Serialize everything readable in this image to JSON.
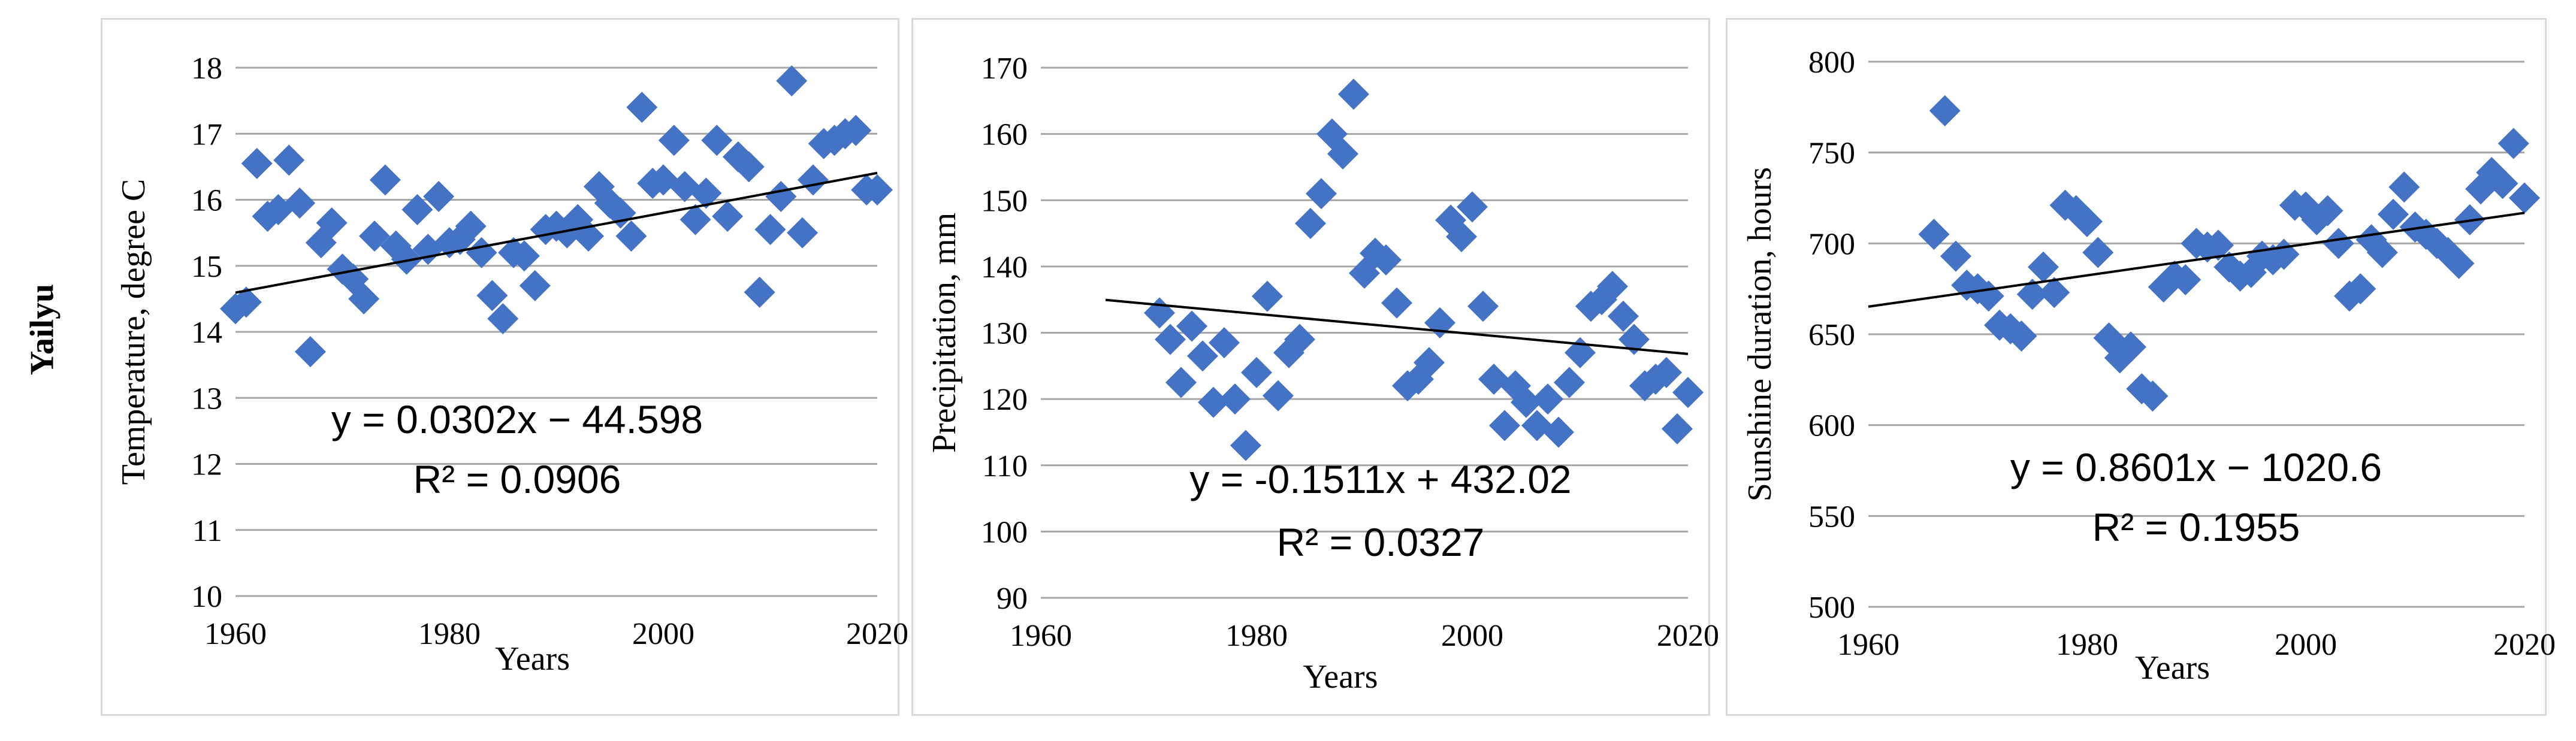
{
  "row_label": "Yailyu",
  "chart_data": [
    {
      "type": "scatter",
      "title": "",
      "xlabel": "Years",
      "ylabel": "Temperature, degree C",
      "xlim": [
        1960,
        2020
      ],
      "ylim": [
        10,
        18
      ],
      "xticks": [
        1960,
        1980,
        2000,
        2020
      ],
      "yticks": [
        10,
        11,
        12,
        13,
        14,
        15,
        16,
        17,
        18
      ],
      "grid": "horizontal",
      "trendline": {
        "slope": 0.0302,
        "intercept": -44.598,
        "x_range": [
          1960,
          2020
        ]
      },
      "equation": "y = 0.0302x − 44.598",
      "r2": "R² = 0.0906",
      "points": [
        [
          1960,
          14.35
        ],
        [
          1961,
          14.45
        ],
        [
          1962,
          16.55
        ],
        [
          1963,
          15.75
        ],
        [
          1964,
          15.85
        ],
        [
          1965,
          16.6
        ],
        [
          1966,
          15.95
        ],
        [
          1967,
          13.7
        ],
        [
          1968,
          15.35
        ],
        [
          1969,
          15.65
        ],
        [
          1970,
          14.95
        ],
        [
          1971,
          14.8
        ],
        [
          1972,
          14.5
        ],
        [
          1973,
          15.45
        ],
        [
          1974,
          16.3
        ],
        [
          1975,
          15.3
        ],
        [
          1976,
          15.1
        ],
        [
          1977,
          15.85
        ],
        [
          1978,
          15.25
        ],
        [
          1979,
          16.05
        ],
        [
          1980,
          15.35
        ],
        [
          1981,
          15.4
        ],
        [
          1982,
          15.6
        ],
        [
          1983,
          15.2
        ],
        [
          1984,
          14.55
        ],
        [
          1985,
          14.2
        ],
        [
          1986,
          15.2
        ],
        [
          1987,
          15.15
        ],
        [
          1988,
          14.7
        ],
        [
          1989,
          15.55
        ],
        [
          1990,
          15.6
        ],
        [
          1991,
          15.5
        ],
        [
          1992,
          15.7
        ],
        [
          1993,
          15.45
        ],
        [
          1994,
          16.2
        ],
        [
          1995,
          15.95
        ],
        [
          1996,
          15.8
        ],
        [
          1997,
          15.45
        ],
        [
          1998,
          17.4
        ],
        [
          1999,
          16.25
        ],
        [
          2000,
          16.3
        ],
        [
          2001,
          16.9
        ],
        [
          2002,
          16.2
        ],
        [
          2003,
          15.7
        ],
        [
          2004,
          16.1
        ],
        [
          2005,
          16.9
        ],
        [
          2006,
          15.75
        ],
        [
          2007,
          16.65
        ],
        [
          2008,
          16.5
        ],
        [
          2009,
          14.6
        ],
        [
          2010,
          15.55
        ],
        [
          2011,
          16.05
        ],
        [
          2012,
          17.8
        ],
        [
          2013,
          15.5
        ],
        [
          2014,
          16.3
        ],
        [
          2015,
          16.85
        ],
        [
          2016,
          16.9
        ],
        [
          2017,
          17.0
        ],
        [
          2018,
          17.05
        ],
        [
          2019,
          16.15
        ],
        [
          2020,
          16.15
        ]
      ]
    },
    {
      "type": "scatter",
      "title": "",
      "xlabel": "Years",
      "ylabel": "Precipitation,  mm",
      "xlim": [
        1960,
        2020
      ],
      "ylim": [
        90,
        170
      ],
      "xticks": [
        1960,
        1980,
        2000,
        2020
      ],
      "yticks": [
        90,
        100,
        110,
        120,
        130,
        140,
        150,
        160,
        170
      ],
      "grid": "horizontal",
      "trendline": {
        "slope": -0.1511,
        "intercept": 432.02,
        "x_range": [
          1966,
          2020
        ]
      },
      "equation": "y = -0.1511x + 432.02",
      "r2": "R² = 0.0327",
      "points": [
        [
          1971,
          133
        ],
        [
          1972,
          129
        ],
        [
          1973,
          122.5
        ],
        [
          1974,
          131
        ],
        [
          1975,
          126.5
        ],
        [
          1976,
          119.5
        ],
        [
          1977,
          128.5
        ],
        [
          1978,
          120
        ],
        [
          1979,
          113
        ],
        [
          1980,
          124
        ],
        [
          1981,
          135.5
        ],
        [
          1982,
          120.5
        ],
        [
          1983,
          127
        ],
        [
          1984,
          129
        ],
        [
          1985,
          146.5
        ],
        [
          1986,
          151
        ],
        [
          1987,
          160
        ],
        [
          1988,
          157
        ],
        [
          1989,
          166
        ],
        [
          1990,
          139
        ],
        [
          1991,
          142
        ],
        [
          1992,
          141
        ],
        [
          1993,
          134.5
        ],
        [
          1994,
          122
        ],
        [
          1995,
          123
        ],
        [
          1996,
          125.5
        ],
        [
          1997,
          131.5
        ],
        [
          1998,
          147
        ],
        [
          1999,
          144.5
        ],
        [
          2000,
          149
        ],
        [
          2001,
          134
        ],
        [
          2002,
          123
        ],
        [
          2003,
          116
        ],
        [
          2004,
          122
        ],
        [
          2005,
          119.5
        ],
        [
          2006,
          116
        ],
        [
          2007,
          120
        ],
        [
          2008,
          115
        ],
        [
          2009,
          122.5
        ],
        [
          2010,
          127
        ],
        [
          2011,
          134
        ],
        [
          2012,
          135
        ],
        [
          2013,
          137
        ],
        [
          2014,
          132.5
        ],
        [
          2015,
          129
        ],
        [
          2016,
          122
        ],
        [
          2017,
          123
        ],
        [
          2018,
          124
        ],
        [
          2019,
          115.5
        ],
        [
          2020,
          121
        ]
      ]
    },
    {
      "type": "scatter",
      "title": "",
      "xlabel": "Years",
      "ylabel": "Sunshine duration, hours",
      "xlim": [
        1960,
        2020
      ],
      "ylim": [
        500,
        800
      ],
      "xticks": [
        1960,
        1980,
        2000,
        2020
      ],
      "yticks": [
        500,
        550,
        600,
        650,
        700,
        750,
        800
      ],
      "grid": "horizontal",
      "trendline": {
        "slope": 0.8601,
        "intercept": -1020.6,
        "x_range": [
          1960,
          2020
        ]
      },
      "equation": "y = 0.8601x − 1020.6",
      "r2": "R² = 0.1955",
      "points": [
        [
          1966,
          705
        ],
        [
          1967,
          773
        ],
        [
          1968,
          693
        ],
        [
          1969,
          677
        ],
        [
          1970,
          675
        ],
        [
          1971,
          671
        ],
        [
          1972,
          655
        ],
        [
          1973,
          653
        ],
        [
          1974,
          649
        ],
        [
          1975,
          672
        ],
        [
          1976,
          687
        ],
        [
          1977,
          673
        ],
        [
          1978,
          721
        ],
        [
          1979,
          718
        ],
        [
          1980,
          712
        ],
        [
          1981,
          695
        ],
        [
          1982,
          648
        ],
        [
          1983,
          637
        ],
        [
          1984,
          643
        ],
        [
          1985,
          620
        ],
        [
          1986,
          616
        ],
        [
          1987,
          676
        ],
        [
          1988,
          682
        ],
        [
          1989,
          680
        ],
        [
          1990,
          700
        ],
        [
          1991,
          698
        ],
        [
          1992,
          699
        ],
        [
          1993,
          687
        ],
        [
          1994,
          682
        ],
        [
          1995,
          684
        ],
        [
          1996,
          693
        ],
        [
          1997,
          691
        ],
        [
          1998,
          694
        ],
        [
          1999,
          721
        ],
        [
          2000,
          720
        ],
        [
          2001,
          713
        ],
        [
          2002,
          718
        ],
        [
          2003,
          700
        ],
        [
          2004,
          671
        ],
        [
          2005,
          675
        ],
        [
          2006,
          702
        ],
        [
          2007,
          695
        ],
        [
          2008,
          716
        ],
        [
          2009,
          731
        ],
        [
          2010,
          709
        ],
        [
          2011,
          705
        ],
        [
          2012,
          700
        ],
        [
          2013,
          695
        ],
        [
          2014,
          689
        ],
        [
          2015,
          713
        ],
        [
          2016,
          730
        ],
        [
          2017,
          739
        ],
        [
          2018,
          733
        ],
        [
          2019,
          755
        ],
        [
          2020,
          725
        ]
      ]
    }
  ]
}
